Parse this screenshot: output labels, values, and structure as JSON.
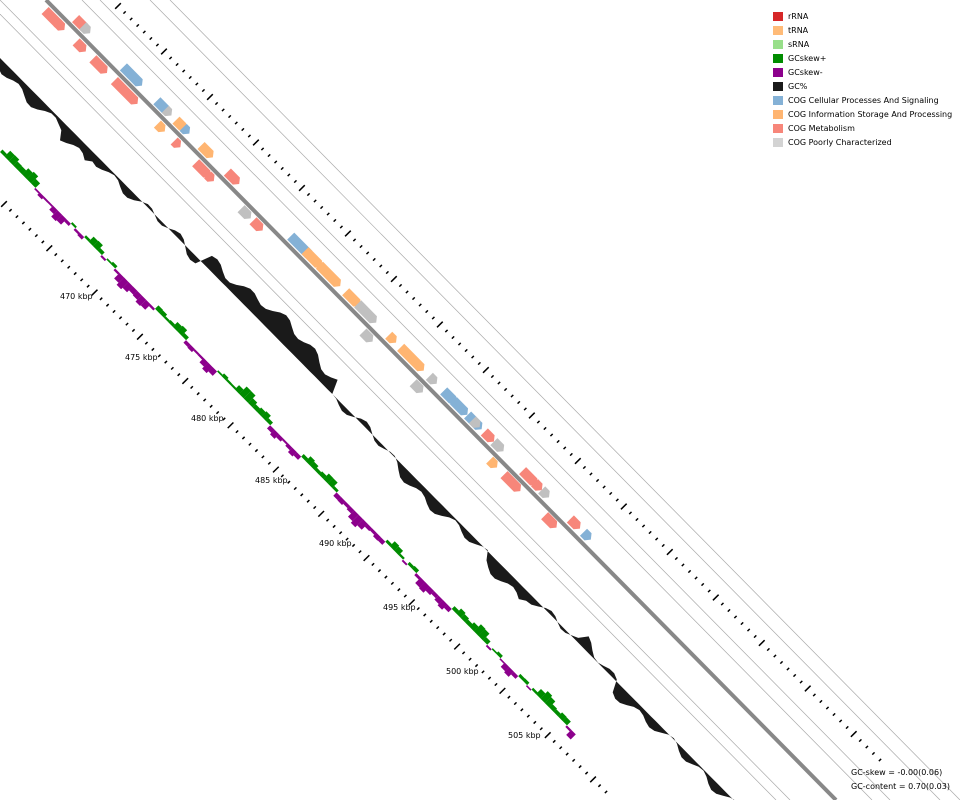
{
  "legend": [
    {
      "label": "rRNA",
      "color": "#d62728"
    },
    {
      "label": "tRNA",
      "color": "#ffbb78"
    },
    {
      "label": "sRNA",
      "color": "#98df8a"
    },
    {
      "label": "GCskew+",
      "color": "#008c00"
    },
    {
      "label": "GCskew-",
      "color": "#8c008c"
    },
    {
      "label": "GC%",
      "color": "#1a1a1a"
    },
    {
      "label": "COG Cellular Processes And Signaling",
      "color": "#84b1d6"
    },
    {
      "label": "COG Information Storage And Processing",
      "color": "#ffb571"
    },
    {
      "label": "COG Metabolism",
      "color": "#f7867a"
    },
    {
      "label": "COG Poorly Characterized",
      "color": "#d3d3d3"
    }
  ],
  "kbp_labels": [
    "470 kbp",
    "475 kbp",
    "480 kbp",
    "485 kbp",
    "490 kbp",
    "495 kbp",
    "500 kbp",
    "505 kbp"
  ],
  "stats": {
    "gc_skew": "GC-skew = -0.00(0.06)",
    "gc_content": "GC-content = 0.70(0.03)"
  },
  "colors": {
    "backbone": "#888888",
    "ring_line": "#aaaaaa",
    "gc_content": "#1a1a1a",
    "skew_plus": "#008c00",
    "skew_minus": "#8c008c",
    "cog_cellular": "#84b1d6",
    "cog_info": "#ffb571",
    "cog_metabolism": "#f7867a",
    "cog_poor": "#c0c0c0"
  }
}
